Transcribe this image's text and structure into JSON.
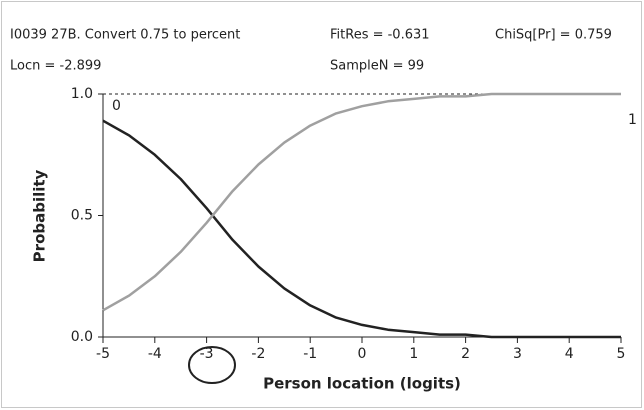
{
  "chart_data": {
    "type": "line",
    "title": "I0039  27B. Convert 0.75 to percent",
    "annotations": [
      "FitRes = -0.631",
      "ChiSq[Pr] = 0.759",
      "Locn = -2.899",
      "SampleN = 99"
    ],
    "xlabel": "Person location (logits)",
    "ylabel": "Probability",
    "x": [
      -5,
      -4.5,
      -4,
      -3.5,
      -3,
      -2.5,
      -2,
      -1.5,
      -1,
      -0.5,
      0,
      0.5,
      1,
      1.5,
      2,
      2.5,
      3,
      3.5,
      4,
      4.5,
      5
    ],
    "series": [
      {
        "name": "0",
        "color": "#222222",
        "values": [
          0.89,
          0.83,
          0.75,
          0.65,
          0.53,
          0.4,
          0.29,
          0.2,
          0.13,
          0.08,
          0.05,
          0.03,
          0.02,
          0.01,
          0.01,
          0.0,
          0.0,
          0.0,
          0.0,
          0.0,
          0.0
        ]
      },
      {
        "name": "1",
        "color": "#a0a0a0",
        "values": [
          0.11,
          0.17,
          0.25,
          0.35,
          0.47,
          0.6,
          0.71,
          0.8,
          0.87,
          0.92,
          0.95,
          0.97,
          0.98,
          0.99,
          0.99,
          1.0,
          1.0,
          1.0,
          1.0,
          1.0,
          1.0
        ]
      }
    ],
    "xlim": [
      -5,
      5
    ],
    "xticks": [
      -5,
      -4,
      -3,
      -2,
      -1,
      0,
      1,
      2,
      3,
      4,
      5
    ],
    "ylim": [
      0,
      1
    ],
    "yticks": [
      {
        "value": 0,
        "label": "0.0"
      },
      {
        "value": 0.5,
        "label": "0.5"
      },
      {
        "value": 1,
        "label": "1.0"
      }
    ]
  }
}
